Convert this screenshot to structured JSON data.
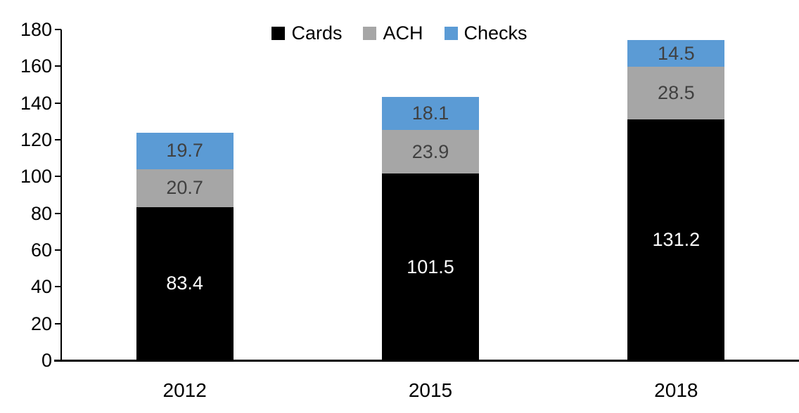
{
  "chart_data": {
    "type": "bar",
    "stacked": true,
    "title": "",
    "xlabel": "",
    "ylabel": "",
    "categories": [
      "2012",
      "2015",
      "2018"
    ],
    "series": [
      {
        "name": "Cards",
        "color": "#000000",
        "label_color": "#FFFFFF",
        "values": [
          83.4,
          101.5,
          131.2
        ]
      },
      {
        "name": "ACH",
        "color": "#A6A6A6",
        "label_color": "#404040",
        "values": [
          20.7,
          23.9,
          28.5
        ]
      },
      {
        "name": "Checks",
        "color": "#5B9BD5",
        "label_color": "#404040",
        "values": [
          19.7,
          18.1,
          14.5
        ]
      }
    ],
    "totals": [
      123.8,
      143.5,
      174.2
    ],
    "ylim": [
      0,
      180
    ],
    "yticks": [
      0,
      20,
      40,
      60,
      80,
      100,
      120,
      140,
      160,
      180
    ],
    "grid": false,
    "value_labels": true,
    "legend_position": "top-center",
    "legend_entries": [
      "Cards",
      "ACH",
      "Checks"
    ]
  },
  "colors": {
    "background": "#FFFFFF",
    "axis": "#000000",
    "tick_label": "#000000"
  }
}
